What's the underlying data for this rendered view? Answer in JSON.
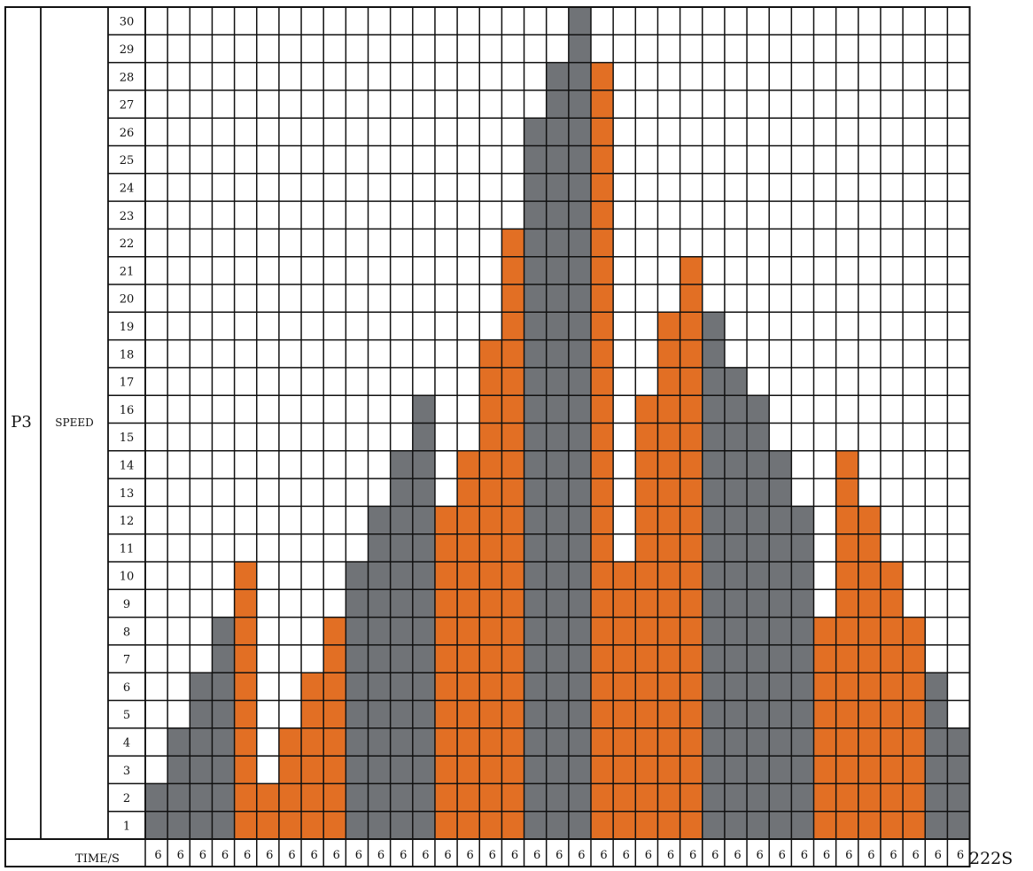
{
  "chart_data": {
    "type": "bar",
    "program_label": "P3",
    "ylabel": "SPEED",
    "xlabel": "TIME/S",
    "total_label": "222S",
    "y_ticks": [
      1,
      2,
      3,
      4,
      5,
      6,
      7,
      8,
      9,
      10,
      11,
      12,
      13,
      14,
      15,
      16,
      17,
      18,
      19,
      20,
      21,
      22,
      23,
      24,
      25,
      26,
      27,
      28,
      29,
      30
    ],
    "ylim": [
      0,
      30
    ],
    "x_ticks": [
      "6",
      "6",
      "6",
      "6",
      "6",
      "6",
      "6",
      "6",
      "6",
      "6",
      "6",
      "6",
      "6",
      "6",
      "6",
      "6",
      "6",
      "6",
      "6",
      "6",
      "6",
      "6",
      "6",
      "6",
      "6",
      "6",
      "6",
      "6",
      "6",
      "6",
      "6",
      "6",
      "6",
      "6",
      "6",
      "6",
      "6"
    ],
    "values": [
      2,
      4,
      6,
      8,
      10,
      2,
      4,
      6,
      8,
      10,
      12,
      14,
      16,
      12,
      14,
      18,
      22,
      26,
      28,
      30,
      28,
      10,
      16,
      19,
      21,
      19,
      17,
      16,
      14,
      12,
      8,
      14,
      12,
      10,
      8,
      6,
      4
    ],
    "bar_colors": [
      "gray",
      "gray",
      "gray",
      "gray",
      "orange",
      "orange",
      "orange",
      "orange",
      "orange",
      "gray",
      "gray",
      "gray",
      "gray",
      "orange",
      "orange",
      "orange",
      "orange",
      "gray",
      "gray",
      "gray",
      "orange",
      "orange",
      "orange",
      "orange",
      "orange",
      "gray",
      "gray",
      "gray",
      "gray",
      "gray",
      "orange",
      "orange",
      "orange",
      "orange",
      "orange",
      "gray",
      "gray"
    ],
    "colors": {
      "gray": "#707377",
      "orange": "#E26F24",
      "grid": "#111111",
      "background": "#ffffff"
    },
    "grid": true
  }
}
